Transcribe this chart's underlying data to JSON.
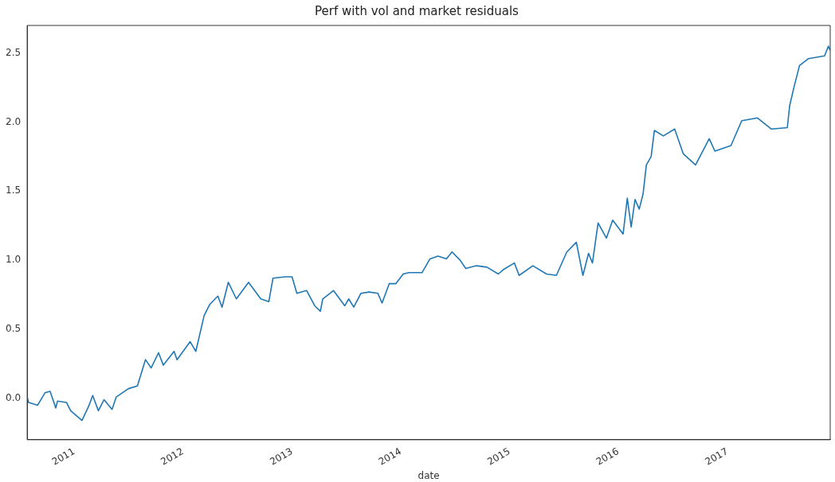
{
  "chart_data": {
    "type": "line",
    "title": "Perf with vol and market residuals",
    "xlabel": "date",
    "x": [
      "2010-07-27",
      "2010-08-01",
      "2010-08-31",
      "2010-09-25",
      "2010-10-12",
      "2010-10-31",
      "2010-11-06",
      "2010-12-06",
      "2010-12-20",
      "2011-01-27",
      "2011-02-18",
      "2011-03-04",
      "2011-03-23",
      "2011-04-11",
      "2011-05-08",
      "2011-05-22",
      "2011-07-02",
      "2011-08-01",
      "2011-08-28",
      "2011-09-16",
      "2011-10-11",
      "2011-10-27",
      "2011-12-02",
      "2011-12-12",
      "2012-01-25",
      "2012-02-13",
      "2012-03-12",
      "2012-03-31",
      "2012-04-27",
      "2012-05-11",
      "2012-06-01",
      "2012-06-28",
      "2012-08-08",
      "2012-09-18",
      "2012-10-15",
      "2012-10-29",
      "2012-12-09",
      "2013-01-01",
      "2013-01-17",
      "2013-02-19",
      "2013-03-18",
      "2013-04-06",
      "2013-04-14",
      "2013-05-20",
      "2013-06-27",
      "2013-07-10",
      "2013-07-27",
      "2013-08-20",
      "2013-09-17",
      "2013-10-16",
      "2013-10-30",
      "2013-11-23",
      "2013-12-15",
      "2014-01-09",
      "2014-01-28",
      "2014-03-13",
      "2014-04-09",
      "2014-05-06",
      "2014-06-03",
      "2014-06-22",
      "2014-07-19",
      "2014-08-07",
      "2014-09-12",
      "2014-10-17",
      "2014-11-24",
      "2014-12-10",
      "2015-01-17",
      "2015-02-02",
      "2015-03-20",
      "2015-05-05",
      "2015-06-07",
      "2015-07-12",
      "2015-08-13",
      "2015-09-04",
      "2015-09-23",
      "2015-10-06",
      "2015-10-25",
      "2015-11-22",
      "2015-12-13",
      "2016-01-17",
      "2016-01-31",
      "2016-02-13",
      "2016-02-26",
      "2016-03-11",
      "2016-03-24",
      "2016-04-04",
      "2016-04-20",
      "2016-05-01",
      "2016-05-31",
      "2016-07-08",
      "2016-08-06",
      "2016-09-16",
      "2016-11-01",
      "2016-11-20",
      "2017-01-13",
      "2017-02-18",
      "2017-04-12",
      "2017-05-28",
      "2017-07-21",
      "2017-07-29",
      "2017-08-12",
      "2017-08-31",
      "2017-09-30",
      "2017-11-23",
      "2017-12-06",
      "2017-12-12"
    ],
    "series": [
      {
        "color": "#1f77b4",
        "values": [
          0.01,
          -0.03,
          -0.05,
          0.04,
          0.05,
          -0.07,
          -0.02,
          -0.03,
          -0.09,
          -0.16,
          -0.06,
          0.02,
          -0.09,
          -0.01,
          -0.08,
          0.01,
          0.07,
          0.09,
          0.28,
          0.22,
          0.33,
          0.24,
          0.34,
          0.28,
          0.41,
          0.34,
          0.6,
          0.68,
          0.74,
          0.66,
          0.84,
          0.72,
          0.84,
          0.72,
          0.7,
          0.87,
          0.88,
          0.88,
          0.76,
          0.78,
          0.67,
          0.63,
          0.72,
          0.78,
          0.67,
          0.72,
          0.66,
          0.76,
          0.77,
          0.76,
          0.69,
          0.83,
          0.83,
          0.9,
          0.91,
          0.91,
          1.01,
          1.03,
          1.01,
          1.06,
          1.0,
          0.94,
          0.96,
          0.95,
          0.9,
          0.93,
          0.98,
          0.89,
          0.96,
          0.9,
          0.89,
          1.06,
          1.13,
          0.89,
          1.05,
          0.98,
          1.27,
          1.16,
          1.29,
          1.19,
          1.45,
          1.24,
          1.44,
          1.37,
          1.48,
          1.69,
          1.75,
          1.94,
          1.9,
          1.95,
          1.77,
          1.69,
          1.88,
          1.79,
          1.83,
          2.01,
          2.03,
          1.95,
          1.96,
          2.12,
          2.25,
          2.41,
          2.46,
          2.48,
          2.55,
          2.52
        ]
      }
    ],
    "xlim": [
      "2010-07-27",
      "2017-12-12"
    ],
    "xticks": [
      "2011",
      "2012",
      "2013",
      "2014",
      "2015",
      "2016",
      "2017"
    ],
    "ylim": [
      -0.3,
      2.7
    ],
    "yticks": [
      {
        "value": 0,
        "label": "0.0"
      },
      {
        "value": 0.5,
        "label": "0.5"
      },
      {
        "value": 1,
        "label": "1.0"
      },
      {
        "value": 1.5,
        "label": "1.5"
      },
      {
        "value": 2,
        "label": "2.0"
      },
      {
        "value": 2.5,
        "label": "2.5"
      }
    ],
    "grid": false,
    "legend": false,
    "marker": "none",
    "line_style": "solid"
  }
}
